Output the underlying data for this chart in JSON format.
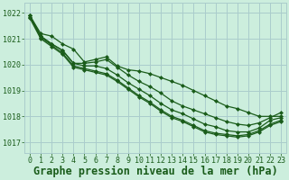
{
  "title": "Graphe pression niveau de la mer (hPa)",
  "bg_color": "#cceedd",
  "grid_color": "#aacccc",
  "line_color": "#1a5c1a",
  "xlim": [
    -0.5,
    23.5
  ],
  "ylim": [
    1016.6,
    1022.4
  ],
  "yticks": [
    1017,
    1018,
    1019,
    1020,
    1021,
    1022
  ],
  "xticks": [
    0,
    1,
    2,
    3,
    4,
    5,
    6,
    7,
    8,
    9,
    10,
    11,
    12,
    13,
    14,
    15,
    16,
    17,
    18,
    19,
    20,
    21,
    22,
    23
  ],
  "series": [
    [
      1021.9,
      1021.2,
      null,
      null,
      null,
      null,
      null,
      null,
      null,
      null,
      null,
      null,
      null,
      null,
      null,
      null,
      null,
      null,
      null,
      null,
      null,
      null,
      null,
      null
    ],
    [
      null,
      1021.1,
      1021.1,
      1020.8,
      1020.6,
      1020.1,
      1020.2,
      1020.3,
      1019.95,
      1019.8,
      1019.75,
      1019.65,
      1019.5,
      1019.35,
      1019.2,
      1019.0,
      1018.8,
      1018.6,
      1018.4,
      1018.3,
      1018.15,
      1018.0,
      1018.0,
      null
    ],
    [
      null,
      null,
      1020.8,
      1020.55,
      1020.05,
      1020.05,
      1020.1,
      1020.2,
      1019.9,
      1019.6,
      1019.35,
      1019.15,
      1018.9,
      1018.6,
      1018.4,
      1018.25,
      1018.1,
      1017.95,
      1017.8,
      1017.7,
      1017.65,
      1017.75,
      1017.95,
      1018.15
    ],
    [
      null,
      null,
      1020.8,
      1020.55,
      1020.05,
      1019.95,
      1019.95,
      1019.85,
      1019.6,
      1019.3,
      1019.05,
      1018.8,
      1018.5,
      1018.25,
      1018.1,
      1017.9,
      1017.7,
      1017.6,
      1017.45,
      1017.4,
      1017.4,
      1017.55,
      1017.85,
      1017.95
    ],
    [
      null,
      null,
      null,
      null,
      null,
      null,
      null,
      null,
      null,
      null,
      null,
      null,
      null,
      null,
      null,
      null,
      null,
      null,
      null,
      null,
      null,
      null,
      null,
      null
    ]
  ],
  "series2": [
    [
      1021.9,
      1021.2,
      1021.1,
      1020.8,
      1020.6,
      1020.1,
      1020.2,
      1020.3,
      1019.95,
      1019.8,
      1019.75,
      1019.65,
      1019.5,
      1019.35,
      1019.2,
      1019.0,
      1018.8,
      1018.6,
      1018.4,
      1018.3,
      1018.15,
      1018.0,
      1018.0,
      1018.0
    ],
    [
      1021.9,
      1021.1,
      1020.8,
      1020.55,
      1020.05,
      1020.05,
      1020.1,
      1020.2,
      1019.9,
      1019.6,
      1019.35,
      1019.15,
      1018.9,
      1018.6,
      1018.4,
      1018.25,
      1018.1,
      1017.95,
      1017.8,
      1017.7,
      1017.65,
      1017.75,
      1017.95,
      1018.15
    ],
    [
      1021.9,
      1021.1,
      1020.8,
      1020.55,
      1020.05,
      1019.95,
      1019.95,
      1019.85,
      1019.6,
      1019.3,
      1019.05,
      1018.8,
      1018.5,
      1018.25,
      1018.1,
      1017.9,
      1017.7,
      1017.6,
      1017.45,
      1017.4,
      1017.4,
      1017.55,
      1017.85,
      1017.95
    ],
    [
      1021.85,
      1021.05,
      1020.75,
      1020.45,
      1019.95,
      1019.85,
      1019.75,
      1019.65,
      1019.4,
      1019.1,
      1018.8,
      1018.55,
      1018.25,
      1018.0,
      1017.85,
      1017.65,
      1017.45,
      1017.35,
      1017.3,
      1017.25,
      1017.3,
      1017.45,
      1017.7,
      1017.85
    ],
    [
      1021.8,
      1021.0,
      1020.7,
      1020.4,
      1019.9,
      1019.8,
      1019.7,
      1019.6,
      1019.35,
      1019.05,
      1018.75,
      1018.5,
      1018.2,
      1017.95,
      1017.8,
      1017.6,
      1017.4,
      1017.3,
      1017.25,
      1017.2,
      1017.25,
      1017.4,
      1017.65,
      1017.8
    ]
  ],
  "marker": "D",
  "markersize": 2.0,
  "linewidth": 0.9,
  "title_fontsize": 8.5,
  "tick_fontsize": 6.0
}
